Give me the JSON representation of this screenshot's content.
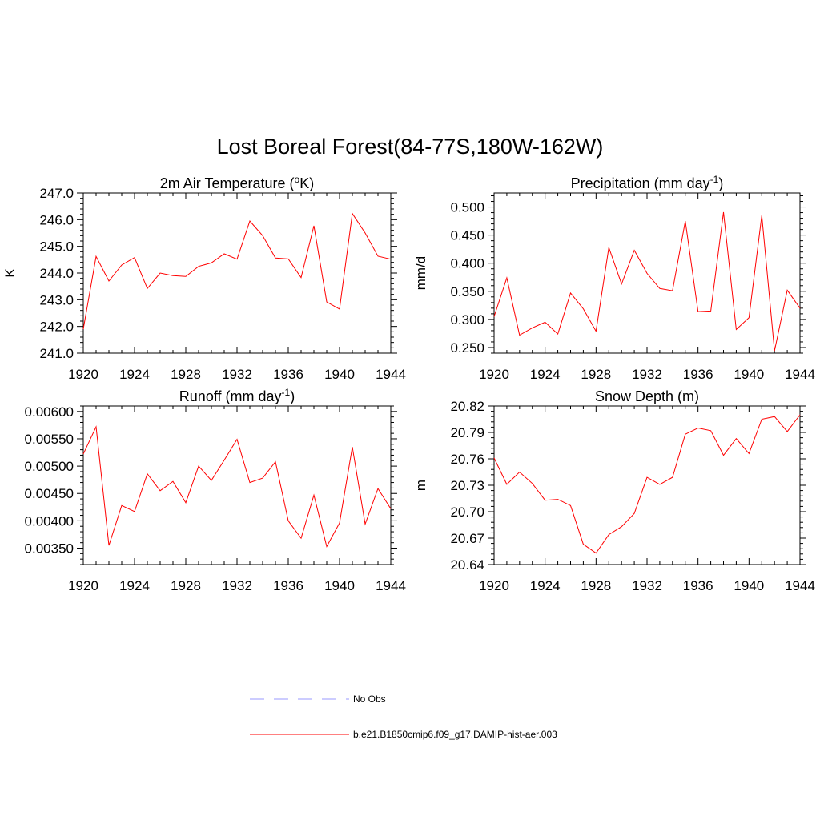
{
  "title": "Lost Boreal Forest(84-77S,180W-162W)",
  "legend": [
    {
      "label": "No Obs",
      "color": "#9999ff",
      "dash": true
    },
    {
      "label": "b.e21.B1850cmip6.f09_g17.DAMIP-hist-aer.003",
      "color": "#ff0000",
      "dash": false
    }
  ],
  "chart_data": [
    {
      "type": "line",
      "title": "2m Air Temperature (°K)",
      "title_parts": [
        "2m Air Temperature (",
        "o",
        "K)"
      ],
      "ylabel": "K",
      "xlim": [
        1920,
        1944
      ],
      "ylim": [
        241.0,
        247.0
      ],
      "xticks": [
        1920,
        1924,
        1928,
        1932,
        1936,
        1940,
        1944
      ],
      "yticks": [
        241.0,
        242.0,
        243.0,
        244.0,
        245.0,
        246.0,
        247.0
      ],
      "ydigits": 1,
      "x": [
        1920,
        1921,
        1922,
        1923,
        1924,
        1925,
        1926,
        1927,
        1928,
        1929,
        1930,
        1931,
        1932,
        1933,
        1934,
        1935,
        1936,
        1937,
        1938,
        1939,
        1940,
        1941,
        1942,
        1943,
        1944
      ],
      "series": [
        {
          "color": "#ff0000",
          "values": [
            241.9,
            244.62,
            243.7,
            244.3,
            244.58,
            243.42,
            244.0,
            243.9,
            243.87,
            244.25,
            244.38,
            244.72,
            244.52,
            245.95,
            245.4,
            244.56,
            244.53,
            243.83,
            245.77,
            242.92,
            242.65,
            246.23,
            245.5,
            244.63,
            244.52
          ]
        }
      ]
    },
    {
      "type": "line",
      "title": "Precipitation (mm day-1)",
      "title_parts": [
        "Precipitation (mm day",
        "-1",
        ")"
      ],
      "ylabel": "mm/d",
      "xlim": [
        1920,
        1944
      ],
      "ylim": [
        0.24,
        0.525
      ],
      "xticks": [
        1920,
        1924,
        1928,
        1932,
        1936,
        1940,
        1944
      ],
      "yticks": [
        0.25,
        0.3,
        0.35,
        0.4,
        0.45,
        0.5
      ],
      "ydigits": 3,
      "x": [
        1920,
        1921,
        1922,
        1923,
        1924,
        1925,
        1926,
        1927,
        1928,
        1929,
        1930,
        1931,
        1932,
        1933,
        1934,
        1935,
        1936,
        1937,
        1938,
        1939,
        1940,
        1941,
        1942,
        1943,
        1944
      ],
      "series": [
        {
          "color": "#ff0000",
          "values": [
            0.305,
            0.374,
            0.272,
            0.285,
            0.295,
            0.274,
            0.347,
            0.319,
            0.279,
            0.428,
            0.363,
            0.423,
            0.382,
            0.355,
            0.351,
            0.475,
            0.314,
            0.315,
            0.491,
            0.282,
            0.303,
            0.485,
            0.244,
            0.352,
            0.32
          ]
        }
      ]
    },
    {
      "type": "line",
      "title": "Runoff (mm day-1)",
      "title_parts": [
        "Runoff (mm day",
        "-1",
        ")"
      ],
      "ylabel": "",
      "xlim": [
        1920,
        1944
      ],
      "ylim": [
        0.0032,
        0.0061
      ],
      "xticks": [
        1920,
        1924,
        1928,
        1932,
        1936,
        1940,
        1944
      ],
      "yticks": [
        0.0035,
        0.004,
        0.0045,
        0.005,
        0.0055,
        0.006
      ],
      "ydigits": 5,
      "x": [
        1920,
        1921,
        1922,
        1923,
        1924,
        1925,
        1926,
        1927,
        1928,
        1929,
        1930,
        1931,
        1932,
        1933,
        1934,
        1935,
        1936,
        1937,
        1938,
        1939,
        1940,
        1941,
        1942,
        1943,
        1944
      ],
      "series": [
        {
          "color": "#ff0000",
          "values": [
            0.00522,
            0.00572,
            0.00355,
            0.00428,
            0.00417,
            0.00486,
            0.00455,
            0.00472,
            0.00433,
            0.005,
            0.00474,
            0.00511,
            0.00549,
            0.0047,
            0.00478,
            0.00508,
            0.004,
            0.00368,
            0.00447,
            0.00353,
            0.00396,
            0.00535,
            0.00394,
            0.00459,
            0.00422
          ]
        }
      ]
    },
    {
      "type": "line",
      "title": "Snow Depth (m)",
      "title_parts": [
        "Snow Depth (m)",
        "",
        ""
      ],
      "ylabel": "m",
      "xlim": [
        1920,
        1944
      ],
      "ylim": [
        20.64,
        20.82
      ],
      "xticks": [
        1920,
        1924,
        1928,
        1932,
        1936,
        1940,
        1944
      ],
      "yticks": [
        20.64,
        20.67,
        20.7,
        20.73,
        20.76,
        20.79,
        20.82
      ],
      "ydigits": 2,
      "x": [
        1920,
        1921,
        1922,
        1923,
        1924,
        1925,
        1926,
        1927,
        1928,
        1929,
        1930,
        1931,
        1932,
        1933,
        1934,
        1935,
        1936,
        1937,
        1938,
        1939,
        1940,
        1941,
        1942,
        1943,
        1944
      ],
      "series": [
        {
          "color": "#ff0000",
          "values": [
            20.761,
            20.731,
            20.745,
            20.732,
            20.713,
            20.714,
            20.707,
            20.663,
            20.653,
            20.674,
            20.683,
            20.698,
            20.739,
            20.731,
            20.739,
            20.788,
            20.795,
            20.792,
            20.764,
            20.783,
            20.766,
            20.805,
            20.808,
            20.791,
            20.81
          ]
        }
      ]
    }
  ]
}
